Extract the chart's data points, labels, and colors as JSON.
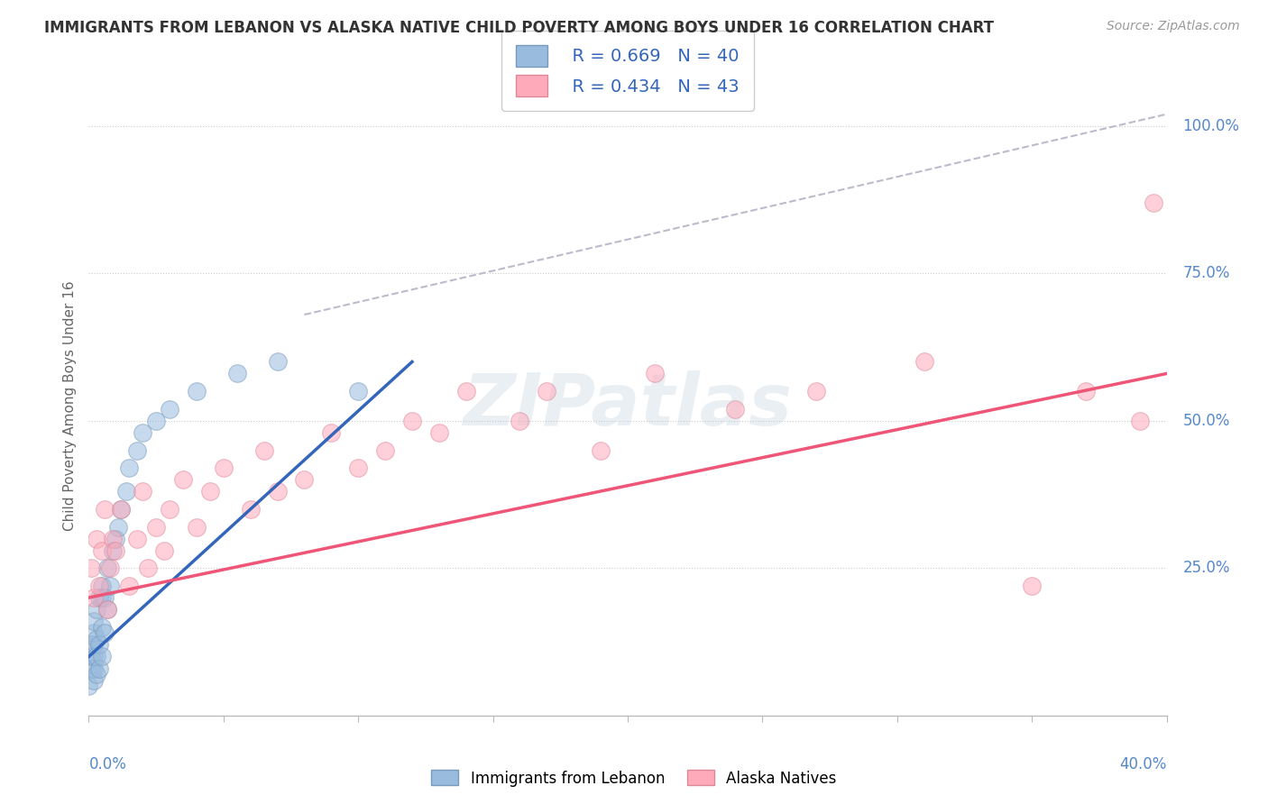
{
  "title": "IMMIGRANTS FROM LEBANON VS ALASKA NATIVE CHILD POVERTY AMONG BOYS UNDER 16 CORRELATION CHART",
  "source": "Source: ZipAtlas.com",
  "ylabel": "Child Poverty Among Boys Under 16",
  "xmin": 0.0,
  "xmax": 0.4,
  "ymin": 0.0,
  "ymax": 1.05,
  "legend_r1": "R = 0.669",
  "legend_n1": "N = 40",
  "legend_r2": "R = 0.434",
  "legend_n2": "N = 43",
  "color_blue_fill": "#99BBDD",
  "color_blue_edge": "#7799BB",
  "color_pink_fill": "#FFAABB",
  "color_pink_edge": "#DD8899",
  "color_blue_line": "#3366BB",
  "color_pink_line": "#EE5577",
  "color_diag": "#BBBBCC",
  "watermark": "ZIPatlas",
  "blue_scatter_x": [
    0.0,
    0.001,
    0.001,
    0.001,
    0.002,
    0.002,
    0.002,
    0.002,
    0.002,
    0.002,
    0.003,
    0.003,
    0.003,
    0.003,
    0.004,
    0.004,
    0.004,
    0.005,
    0.005,
    0.005,
    0.005,
    0.006,
    0.006,
    0.007,
    0.007,
    0.008,
    0.009,
    0.01,
    0.011,
    0.012,
    0.014,
    0.015,
    0.018,
    0.02,
    0.025,
    0.03,
    0.04,
    0.055,
    0.07,
    0.1
  ],
  "blue_scatter_y": [
    0.05,
    0.08,
    0.1,
    0.12,
    0.06,
    0.08,
    0.1,
    0.12,
    0.14,
    0.16,
    0.07,
    0.1,
    0.13,
    0.18,
    0.08,
    0.12,
    0.2,
    0.1,
    0.15,
    0.2,
    0.22,
    0.14,
    0.2,
    0.18,
    0.25,
    0.22,
    0.28,
    0.3,
    0.32,
    0.35,
    0.38,
    0.42,
    0.45,
    0.48,
    0.5,
    0.52,
    0.55,
    0.58,
    0.6,
    0.55
  ],
  "pink_scatter_x": [
    0.001,
    0.002,
    0.003,
    0.004,
    0.005,
    0.006,
    0.007,
    0.008,
    0.009,
    0.01,
    0.012,
    0.015,
    0.018,
    0.02,
    0.022,
    0.025,
    0.028,
    0.03,
    0.035,
    0.04,
    0.045,
    0.05,
    0.06,
    0.065,
    0.07,
    0.08,
    0.09,
    0.1,
    0.11,
    0.12,
    0.13,
    0.14,
    0.16,
    0.17,
    0.19,
    0.21,
    0.24,
    0.27,
    0.31,
    0.35,
    0.37,
    0.39,
    0.395
  ],
  "pink_scatter_y": [
    0.25,
    0.2,
    0.3,
    0.22,
    0.28,
    0.35,
    0.18,
    0.25,
    0.3,
    0.28,
    0.35,
    0.22,
    0.3,
    0.38,
    0.25,
    0.32,
    0.28,
    0.35,
    0.4,
    0.32,
    0.38,
    0.42,
    0.35,
    0.45,
    0.38,
    0.4,
    0.48,
    0.42,
    0.45,
    0.5,
    0.48,
    0.55,
    0.5,
    0.55,
    0.45,
    0.58,
    0.52,
    0.55,
    0.6,
    0.22,
    0.55,
    0.5,
    0.87
  ],
  "blue_line_x": [
    0.0,
    0.12
  ],
  "blue_line_y": [
    0.1,
    0.6
  ],
  "pink_line_x": [
    0.0,
    0.4
  ],
  "pink_line_y": [
    0.2,
    0.58
  ],
  "diag_line_x": [
    0.08,
    0.4
  ],
  "diag_line_y": [
    0.68,
    1.02
  ]
}
